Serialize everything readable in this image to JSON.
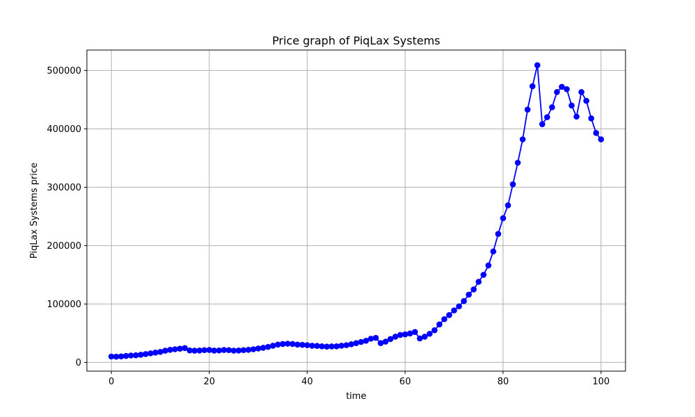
{
  "chart_data": {
    "type": "line",
    "title": "Price graph of PiqLax Systems",
    "xlabel": "time",
    "ylabel": "PiqLax Systems price",
    "xlim": [
      -5,
      105
    ],
    "ylim": [
      -15000,
      535000
    ],
    "xticks": [
      0,
      20,
      40,
      60,
      80,
      100
    ],
    "xtick_labels": [
      "0",
      "20",
      "40",
      "60",
      "80",
      "100"
    ],
    "yticks": [
      0,
      100000,
      200000,
      300000,
      400000,
      500000
    ],
    "ytick_labels": [
      "0",
      "100000",
      "200000",
      "300000",
      "400000",
      "500000"
    ],
    "grid": true,
    "marker": "circle",
    "colors": {
      "series": "#0000ff",
      "grid": "#b0b0b0",
      "axes": "#000000"
    },
    "series": [
      {
        "x": [
          0,
          1,
          2,
          3,
          4,
          5,
          6,
          7,
          8,
          9,
          10,
          11,
          12,
          13,
          14,
          15,
          16,
          17,
          18,
          19,
          20,
          21,
          22,
          23,
          24,
          25,
          26,
          27,
          28,
          29,
          30,
          31,
          32,
          33,
          34,
          35,
          36,
          37,
          38,
          39,
          40,
          41,
          42,
          43,
          44,
          45,
          46,
          47,
          48,
          49,
          50,
          51,
          52,
          53,
          54,
          55,
          56,
          57,
          58,
          59,
          60,
          61,
          62,
          63,
          64,
          65,
          66,
          67,
          68,
          69,
          70,
          71,
          72,
          73,
          74,
          75,
          76,
          77,
          78,
          79,
          80,
          81,
          82,
          83,
          84,
          85,
          86,
          87,
          88,
          89,
          90,
          91,
          92,
          93,
          94,
          95,
          96,
          97,
          98,
          99,
          100
        ],
        "values": [
          10000,
          9800,
          10200,
          11000,
          11800,
          12200,
          13000,
          14200,
          15500,
          16800,
          18000,
          20000,
          21500,
          22500,
          23500,
          24500,
          20500,
          20000,
          20300,
          21000,
          21200,
          20200,
          20400,
          21200,
          21000,
          20100,
          20300,
          21000,
          21500,
          22500,
          23800,
          25000,
          26500,
          28500,
          30500,
          31500,
          32000,
          31500,
          30500,
          30000,
          29500,
          28500,
          28200,
          27500,
          27000,
          27300,
          27500,
          28500,
          29500,
          31000,
          33000,
          35000,
          37000,
          40500,
          42000,
          33000,
          35500,
          40000,
          44000,
          47000,
          48000,
          49500,
          52000,
          41000,
          44000,
          49000,
          55000,
          65000,
          74000,
          81000,
          89000,
          96000,
          105000,
          116000,
          125000,
          138000,
          150000,
          166000,
          190000,
          220000,
          247000,
          269000,
          305000,
          342000,
          382000,
          433000,
          473000,
          509000,
          408000,
          420000,
          437000,
          463000,
          472000,
          468000,
          440000,
          421000,
          463000,
          448000,
          418000,
          393000,
          382000
        ]
      }
    ]
  }
}
